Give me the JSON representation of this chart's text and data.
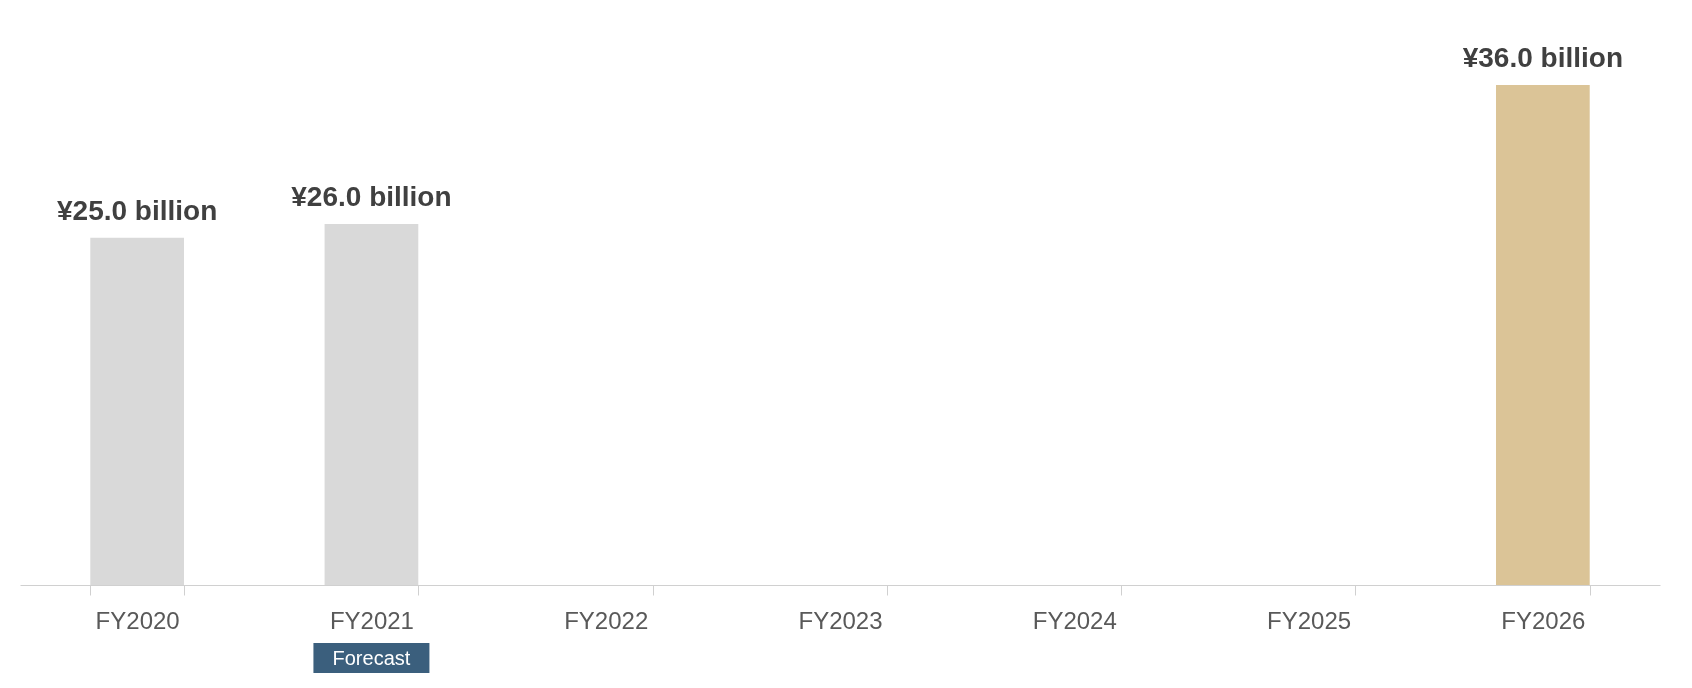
{
  "chart_data": {
    "type": "bar",
    "categories": [
      "FY2020",
      "FY2021",
      "FY2022",
      "FY2023",
      "FY2024",
      "FY2025",
      "FY2026"
    ],
    "values": [
      25.0,
      26.0,
      null,
      null,
      null,
      null,
      36.0
    ],
    "colors": [
      "#d9d9d9",
      "#d9d9d9",
      "#d9d9d9",
      "#d9d9d9",
      "#d9d9d9",
      "#d9d9d9",
      "#dbc497"
    ],
    "value_labels": [
      "¥25.0 billion",
      "¥26.0 billion",
      null,
      null,
      null,
      null,
      "¥36.0 billion"
    ],
    "annotations": [
      "Forecast"
    ],
    "grid": false
  }
}
